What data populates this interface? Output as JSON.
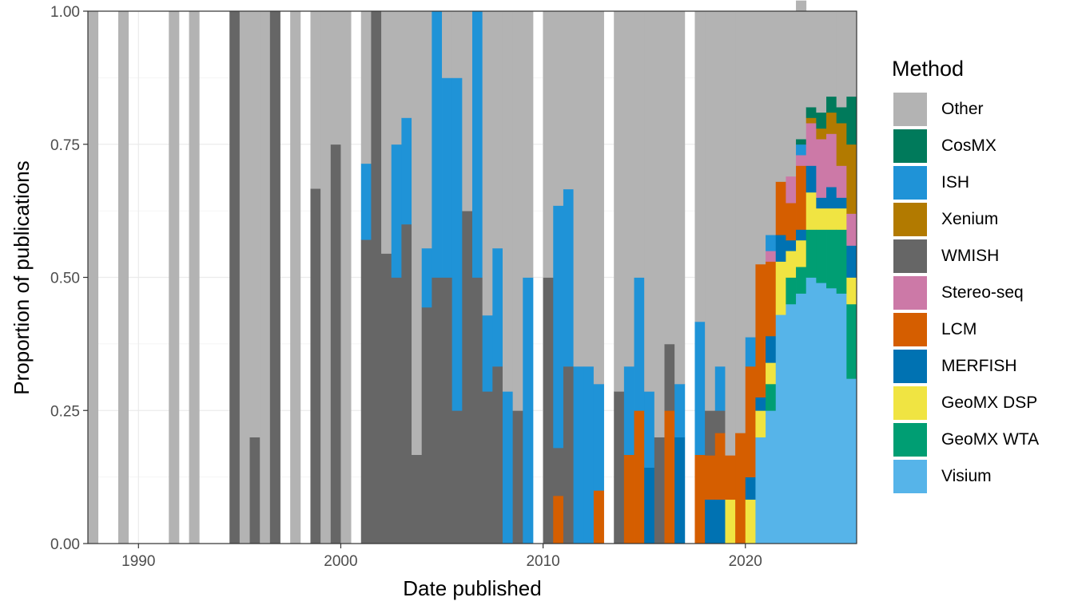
{
  "chart_data": {
    "type": "bar",
    "stacked": "proportion",
    "xlabel": "Date published",
    "ylabel": "Proportion of publications",
    "xlim": [
      1987.5,
      2025.5
    ],
    "ylim": [
      0,
      1
    ],
    "x_ticks": [
      {
        "value": 1990,
        "label": "1990"
      },
      {
        "value": 2000,
        "label": "2000"
      },
      {
        "value": 2010,
        "label": "2010"
      },
      {
        "value": 2020,
        "label": "2020"
      }
    ],
    "y_ticks": [
      {
        "value": 0,
        "label": "0.00"
      },
      {
        "value": 0.25,
        "label": "0.25"
      },
      {
        "value": 0.5,
        "label": "0.50"
      },
      {
        "value": 0.75,
        "label": "0.75"
      },
      {
        "value": 1,
        "label": "1.00"
      }
    ],
    "bin_width": 0.5,
    "grid": true,
    "legend": {
      "title": "Method",
      "position": "right",
      "items": [
        {
          "name": "Other",
          "color": "#b3b3b3"
        },
        {
          "name": "CosMX",
          "color": "#007a5b"
        },
        {
          "name": "ISH",
          "color": "#1f93d7"
        },
        {
          "name": "Xenium",
          "color": "#b27a00"
        },
        {
          "name": "WMISH",
          "color": "#666666"
        },
        {
          "name": "Stereo-seq",
          "color": "#cc79a7"
        },
        {
          "name": "LCM",
          "color": "#d55e00"
        },
        {
          "name": "MERFISH",
          "color": "#0072b2"
        },
        {
          "name": "GeoMX DSP",
          "color": "#f0e442"
        },
        {
          "name": "GeoMX WTA",
          "color": "#009e73"
        },
        {
          "name": "Visium",
          "color": "#56b4e9"
        }
      ]
    },
    "stack_order_bottom_to_top": [
      "Visium",
      "GeoMX WTA",
      "GeoMX DSP",
      "MERFISH",
      "LCM",
      "Stereo-seq",
      "WMISH",
      "Xenium",
      "ISH",
      "CosMX",
      "Other"
    ],
    "bins": [
      {
        "x": 1987.75,
        "Other": 1
      },
      {
        "x": 1989.25,
        "Other": 1
      },
      {
        "x": 1991.75,
        "Other": 1
      },
      {
        "x": 1992.75,
        "Other": 1
      },
      {
        "x": 1994.75,
        "WMISH": 1
      },
      {
        "x": 1995.25,
        "Other": 1
      },
      {
        "x": 1995.75,
        "WMISH": 0.2,
        "Other": 0.8
      },
      {
        "x": 1996.25,
        "Other": 1
      },
      {
        "x": 1996.75,
        "WMISH": 1
      },
      {
        "x": 1997.75,
        "Other": 1
      },
      {
        "x": 1998.75,
        "WMISH": 0.667,
        "Other": 0.333
      },
      {
        "x": 1999.25,
        "Other": 1
      },
      {
        "x": 1999.75,
        "WMISH": 0.75,
        "Other": 0.25
      },
      {
        "x": 2000.25,
        "Other": 1
      },
      {
        "x": 2001.25,
        "WMISH": 0.571,
        "ISH": 0.143,
        "Other": 0.286
      },
      {
        "x": 2001.75,
        "WMISH": 1
      },
      {
        "x": 2002.25,
        "WMISH": 0.545,
        "Other": 0.455
      },
      {
        "x": 2002.75,
        "WMISH": 0.5,
        "ISH": 0.25,
        "Other": 0.25
      },
      {
        "x": 2003.25,
        "WMISH": 0.6,
        "ISH": 0.2,
        "Other": 0.2
      },
      {
        "x": 2003.75,
        "WMISH": 0.167,
        "Other": 0.833
      },
      {
        "x": 2004.25,
        "WMISH": 0.444,
        "ISH": 0.111,
        "Other": 0.445
      },
      {
        "x": 2004.75,
        "WMISH": 0.5,
        "ISH": 0.5
      },
      {
        "x": 2005.25,
        "WMISH": 0.5,
        "ISH": 0.375,
        "Other": 0.125
      },
      {
        "x": 2005.75,
        "WMISH": 0.25,
        "ISH": 0.625,
        "Other": 0.125
      },
      {
        "x": 2006.25,
        "WMISH": 0.625,
        "Other": 0.375
      },
      {
        "x": 2006.75,
        "WMISH": 0.5,
        "ISH": 0.5
      },
      {
        "x": 2007.25,
        "WMISH": 0.286,
        "ISH": 0.143,
        "Other": 0.571
      },
      {
        "x": 2007.75,
        "WMISH": 0.333,
        "ISH": 0.222,
        "Other": 0.445
      },
      {
        "x": 2008.25,
        "ISH": 0.286,
        "Other": 0.714
      },
      {
        "x": 2008.75,
        "WMISH": 0.25,
        "Other": 0.75
      },
      {
        "x": 2009.25,
        "ISH": 0.5,
        "Other": 0.5
      },
      {
        "x": 2010.25,
        "WMISH": 0.5,
        "Other": 0.5
      },
      {
        "x": 2010.75,
        "LCM": 0.09,
        "WMISH": 0.09,
        "ISH": 0.455,
        "Other": 0.365
      },
      {
        "x": 2011.25,
        "WMISH": 0.333,
        "ISH": 0.333,
        "Other": 0.334
      },
      {
        "x": 2011.75,
        "ISH": 0.333,
        "Other": 0.667
      },
      {
        "x": 2012.25,
        "ISH": 0.333,
        "Other": 0.667
      },
      {
        "x": 2012.75,
        "LCM": 0.1,
        "ISH": 0.2,
        "Other": 0.7
      },
      {
        "x": 2013.75,
        "WMISH": 0.286,
        "Other": 0.714
      },
      {
        "x": 2014.25,
        "LCM": 0.167,
        "ISH": 0.166,
        "Other": 0.667
      },
      {
        "x": 2014.75,
        "LCM": 0.25,
        "ISH": 0.25,
        "Other": 0.5
      },
      {
        "x": 2015.25,
        "MERFISH": 0.143,
        "ISH": 0.143,
        "Other": 0.714
      },
      {
        "x": 2015.75,
        "WMISH": 0.2,
        "Other": 0.8
      },
      {
        "x": 2016.25,
        "LCM": 0.25,
        "WMISH": 0.125,
        "Other": 0.625
      },
      {
        "x": 2016.75,
        "MERFISH": 0.2,
        "ISH": 0.1,
        "Other": 0.7
      },
      {
        "x": 2017.75,
        "LCM": 0.167,
        "ISH": 0.25,
        "Other": 0.583
      },
      {
        "x": 2018.25,
        "MERFISH": 0.083,
        "LCM": 0.083,
        "WMISH": 0.084,
        "Other": 0.75
      },
      {
        "x": 2018.75,
        "MERFISH": 0.083,
        "LCM": 0.125,
        "WMISH": 0.042,
        "ISH": 0.083,
        "Other": 0.667
      },
      {
        "x": 2019.25,
        "GeoMX DSP": 0.083,
        "LCM": 0.083,
        "Other": 0.834
      },
      {
        "x": 2019.75,
        "LCM": 0.208,
        "Other": 0.792
      },
      {
        "x": 2020.25,
        "GeoMX DSP": 0.083,
        "MERFISH": 0.042,
        "LCM": 0.208,
        "ISH": 0.055,
        "Other": 0.612
      },
      {
        "x": 2020.75,
        "Visium": 0.2,
        "GeoMX DSP": 0.05,
        "LCM": 0.25,
        "MERFISH": 0.025,
        "Other": 0.475
      },
      {
        "x": 2021.25,
        "Visium": 0.25,
        "GeoMX WTA": 0.05,
        "GeoMX DSP": 0.04,
        "MERFISH": 0.05,
        "LCM": 0.14,
        "Stereo-seq": 0.02,
        "ISH": 0.03,
        "Other": 0.42
      },
      {
        "x": 2021.75,
        "Visium": 0.43,
        "GeoMX DSP": 0.1,
        "MERFISH": 0.05,
        "LCM": 0.1,
        "Other": 0.32
      },
      {
        "x": 2022.25,
        "Visium": 0.45,
        "GeoMX WTA": 0.05,
        "GeoMX DSP": 0.05,
        "MERFISH": 0.02,
        "LCM": 0.07,
        "Stereo-seq": 0.05,
        "Other": 0.31
      },
      {
        "x": 2022.75,
        "Visium": 0.47,
        "GeoMX WTA": 0.05,
        "GeoMX DSP": 0.05,
        "MERFISH": 0.02,
        "LCM": 0.12,
        "Stereo-seq": 0.02,
        "ISH": 0.02,
        "CosMX": 0.01,
        "Other": 0.26
      },
      {
        "x": 2023.25,
        "Visium": 0.5,
        "GeoMX WTA": 0.09,
        "GeoMX DSP": 0.07,
        "MERFISH": 0.05,
        "Stereo-seq": 0.08,
        "Xenium": 0.01,
        "CosMX": 0.02,
        "Other": 0.18
      },
      {
        "x": 2023.75,
        "Visium": 0.49,
        "GeoMX WTA": 0.1,
        "GeoMX DSP": 0.04,
        "MERFISH": 0.02,
        "Stereo-seq": 0.11,
        "Xenium": 0.02,
        "CosMX": 0.03,
        "Other": 0.19
      },
      {
        "x": 2024.25,
        "Visium": 0.48,
        "GeoMX WTA": 0.11,
        "GeoMX DSP": 0.04,
        "MERFISH": 0.04,
        "Stereo-seq": 0.1,
        "Xenium": 0.04,
        "CosMX": 0.03,
        "Other": 0.16
      },
      {
        "x": 2024.75,
        "Visium": 0.47,
        "GeoMX WTA": 0.12,
        "GeoMX DSP": 0.04,
        "MERFISH": 0.02,
        "Stereo-seq": 0.06,
        "Xenium": 0.08,
        "CosMX": 0.03,
        "Other": 0.18
      },
      {
        "x": 2025.25,
        "Visium": 0.31,
        "GeoMX WTA": 0.14,
        "GeoMX DSP": 0.05,
        "MERFISH": 0.06,
        "Stereo-seq": 0.06,
        "Xenium": 0.13,
        "CosMX": 0.09,
        "Other": 0.16
      }
    ]
  }
}
